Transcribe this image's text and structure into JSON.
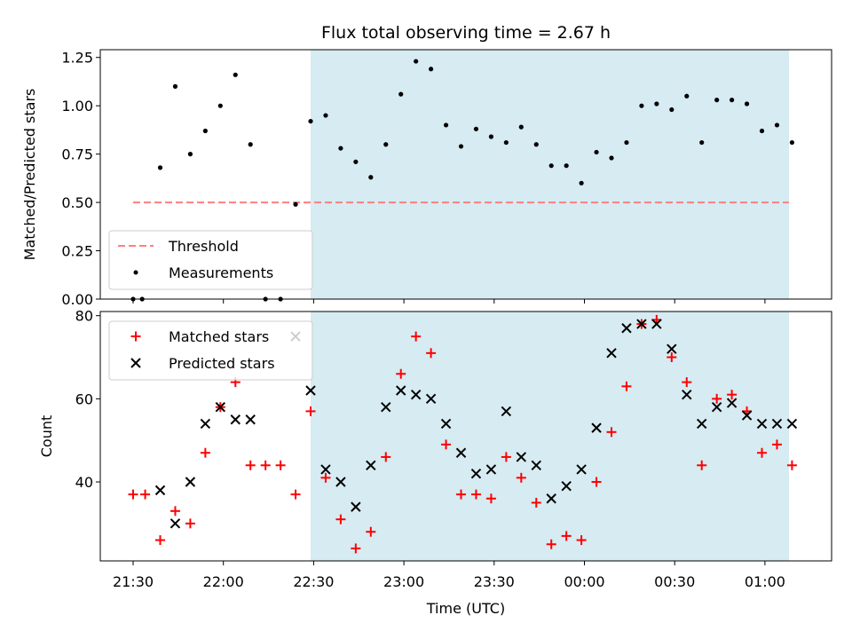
{
  "chart_data": [
    {
      "type": "scatter",
      "title": "Flux total observing time = 2.67 h",
      "xlabel": "",
      "ylabel": "Matched/Predicted stars",
      "ylim": [
        0,
        1.29
      ],
      "yticks": [
        "0.00",
        "0.25",
        "0.50",
        "0.75",
        "1.00",
        "1.25"
      ],
      "ytick_values": [
        0,
        0.25,
        0.5,
        0.75,
        1.0,
        1.25
      ],
      "shaded_region": {
        "x_start": "22:29",
        "x_end": "01:08",
        "color": "#add8e6"
      },
      "threshold": {
        "name": "Threshold",
        "y": 0.5,
        "x_start": "21:30",
        "x_end": "01:08",
        "color": "#ff7f7f"
      },
      "legend": {
        "placement": "lower-left",
        "entries": [
          "Threshold",
          "Measurements"
        ]
      },
      "series": [
        {
          "name": "Measurements",
          "color": "#000000",
          "x": [
            "21:30",
            "21:33",
            "21:39",
            "21:44",
            "21:49",
            "21:54",
            "21:59",
            "22:04",
            "22:09",
            "22:14",
            "22:19",
            "22:24",
            "22:29",
            "22:34",
            "22:39",
            "22:44",
            "22:49",
            "22:54",
            "22:59",
            "23:04",
            "23:09",
            "23:14",
            "23:19",
            "23:24",
            "23:29",
            "23:34",
            "23:39",
            "23:44",
            "23:49",
            "23:54",
            "23:59",
            "00:04",
            "00:09",
            "00:14",
            "00:19",
            "00:24",
            "00:29",
            "00:34",
            "00:39",
            "00:44",
            "00:49",
            "00:54",
            "00:59",
            "01:04",
            "01:09"
          ],
          "y": [
            0.0,
            0.0,
            0.68,
            1.1,
            0.75,
            0.87,
            1.0,
            1.16,
            0.8,
            0.0,
            0.0,
            0.49,
            0.92,
            0.95,
            0.78,
            0.71,
            0.63,
            0.8,
            1.06,
            1.23,
            1.19,
            0.9,
            0.79,
            0.88,
            0.84,
            0.81,
            0.89,
            0.8,
            0.69,
            0.69,
            0.6,
            0.76,
            0.73,
            0.81,
            1.0,
            1.01,
            0.98,
            1.05,
            0.81,
            1.03,
            1.03,
            1.01,
            0.87,
            0.9,
            0.81
          ]
        }
      ]
    },
    {
      "type": "scatter",
      "xlabel": "Time (UTC)",
      "ylabel": "Count",
      "ylim": [
        21,
        81
      ],
      "yticks": [
        "40",
        "60",
        "80"
      ],
      "ytick_values": [
        40,
        60,
        80
      ],
      "xticks": [
        "21:30",
        "22:00",
        "22:30",
        "23:00",
        "23:30",
        "00:00",
        "00:30",
        "01:00"
      ],
      "shaded_region": {
        "x_start": "22:29",
        "x_end": "01:08",
        "color": "#add8e6"
      },
      "legend": {
        "placement": "top-left",
        "entries": [
          "Matched stars",
          "Predicted stars"
        ]
      },
      "series": [
        {
          "name": "Matched stars",
          "color": "#ff0000",
          "x": [
            "21:30",
            "21:34",
            "21:39",
            "21:44",
            "21:49",
            "21:54",
            "21:59",
            "22:04",
            "22:09",
            "22:14",
            "22:19",
            "22:24",
            "22:29",
            "22:34",
            "22:39",
            "22:44",
            "22:49",
            "22:54",
            "22:59",
            "23:04",
            "23:09",
            "23:14",
            "23:19",
            "23:24",
            "23:29",
            "23:34",
            "23:39",
            "23:44",
            "23:49",
            "23:54",
            "23:59",
            "00:04",
            "00:09",
            "00:14",
            "00:19",
            "00:24",
            "00:29",
            "00:34",
            "00:39",
            "00:44",
            "00:49",
            "00:54",
            "00:59",
            "01:04",
            "01:09"
          ],
          "y": [
            37,
            37,
            26,
            33,
            30,
            47,
            58,
            64,
            44,
            44,
            44,
            37,
            57,
            41,
            31,
            24,
            28,
            46,
            66,
            75,
            71,
            49,
            37,
            37,
            36,
            46,
            41,
            35,
            25,
            27,
            26,
            40,
            52,
            63,
            78,
            79,
            70,
            64,
            44,
            60,
            61,
            57,
            47,
            49,
            44
          ]
        },
        {
          "name": "Predicted stars",
          "color": "#000000",
          "x": [
            "21:39",
            "21:44",
            "21:49",
            "21:54",
            "21:59",
            "22:04",
            "22:09",
            "22:24",
            "22:29",
            "22:34",
            "22:39",
            "22:44",
            "22:49",
            "22:54",
            "22:59",
            "23:04",
            "23:09",
            "23:14",
            "23:19",
            "23:24",
            "23:29",
            "23:34",
            "23:39",
            "23:44",
            "23:49",
            "23:54",
            "23:59",
            "00:04",
            "00:09",
            "00:14",
            "00:19",
            "00:24",
            "00:29",
            "00:34",
            "00:39",
            "00:44",
            "00:49",
            "00:54",
            "00:59",
            "01:04",
            "01:09"
          ],
          "y": [
            38,
            30,
            40,
            54,
            58,
            55,
            55,
            75,
            62,
            43,
            40,
            34,
            44,
            58,
            62,
            61,
            60,
            54,
            47,
            42,
            43,
            57,
            46,
            44,
            36,
            39,
            43,
            53,
            71,
            77,
            78,
            78,
            72,
            61,
            54,
            58,
            59,
            56,
            54,
            54,
            54
          ]
        }
      ]
    }
  ]
}
